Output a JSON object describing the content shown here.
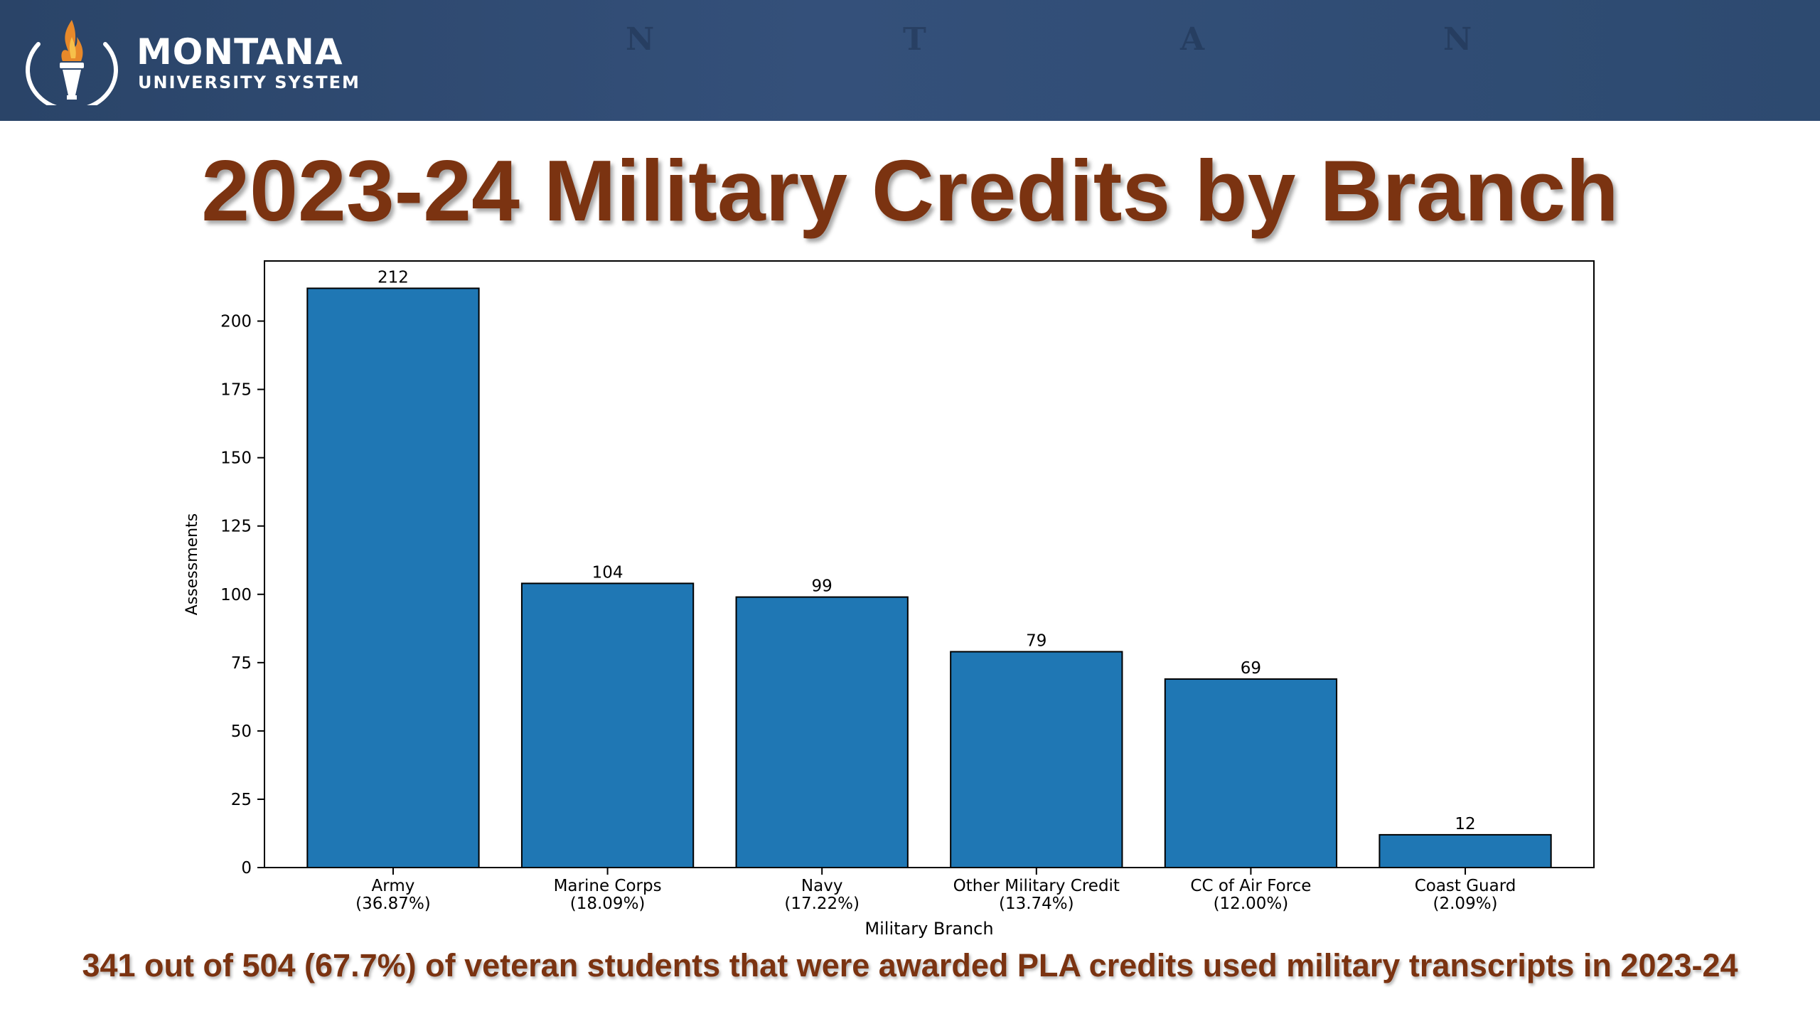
{
  "header": {
    "brand_name": "MONTANA",
    "brand_sub": "UNIVERSITY SYSTEM",
    "logo_icon": "torch-icon",
    "background_color": "#2f4b73"
  },
  "slide": {
    "title": "2023-24 Military Credits by Branch",
    "footnote": "341 out of 504 (67.7%) of veteran students that were awarded PLA credits used military transcripts in 2023-24",
    "title_color": "#7b3311"
  },
  "chart_data": {
    "type": "bar",
    "title": "",
    "xlabel": "Military Branch",
    "ylabel": "Assessments",
    "categories": [
      "Army",
      "Marine Corps",
      "Navy",
      "Other Military Credit",
      "CC of Air Force",
      "Coast Guard"
    ],
    "category_sublabels": [
      "(36.87%)",
      "(18.09%)",
      "(17.22%)",
      "(13.74%)",
      "(12.00%)",
      "(2.09%)"
    ],
    "values": [
      212,
      104,
      99,
      79,
      69,
      12
    ],
    "ylim": [
      0,
      222
    ],
    "yticks": [
      0,
      25,
      50,
      75,
      100,
      125,
      150,
      175,
      200
    ],
    "bar_color": "#1f77b4",
    "grid": false
  }
}
